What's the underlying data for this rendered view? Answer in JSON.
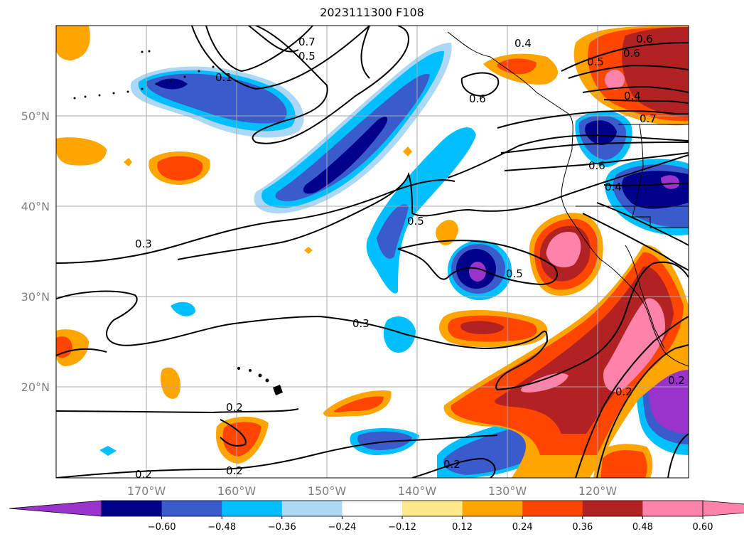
{
  "title": "2023111300 F108",
  "map": {
    "lat_labels": [
      "50°N",
      "40°N",
      "30°N",
      "20°N"
    ],
    "lon_labels": [
      "170°W",
      "160°W",
      "150°W",
      "140°W",
      "130°W",
      "120°W"
    ],
    "contour_labels": [
      "0.7",
      "0.5",
      "0.4",
      "0.5",
      "0.6",
      "0.6",
      "0.4",
      "0.1",
      "0.6",
      "0.7",
      "0.6",
      "0.4",
      "0.3",
      "0.5",
      "0.5",
      "0.3",
      "0.2",
      "0.2",
      "0.2",
      "0.2",
      "0.2",
      "0.2"
    ]
  },
  "colorbar": {
    "ticks": [
      "−0.60",
      "−0.48",
      "−0.36",
      "−0.24",
      "−0.12",
      "0.12",
      "0.24",
      "0.36",
      "0.48",
      "0.60"
    ],
    "colors": [
      "#9933cc",
      "#00008b",
      "#3a5bcc",
      "#00bfff",
      "#add8f5",
      "#ffffff",
      "#ffe98a",
      "#ffa500",
      "#ff4500",
      "#b22222",
      "#ff82aa",
      "#ff82aa"
    ],
    "extend": "both"
  },
  "colors": {
    "purple": "#9933cc",
    "navy": "#00008b",
    "blue": "#3a5bcc",
    "sky": "#00bfff",
    "lightblue": "#add8f5",
    "lightyellow": "#ffe98a",
    "orange": "#ffa500",
    "redorange": "#ff4500",
    "firebrick": "#b22222",
    "pink": "#ff82aa"
  }
}
